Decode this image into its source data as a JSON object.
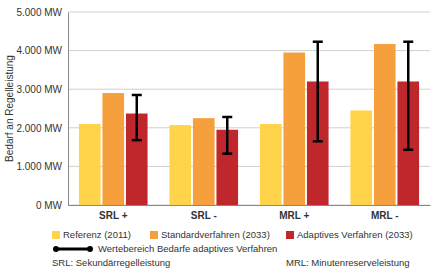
{
  "chart_data": {
    "type": "bar",
    "y_label": "Bedarf an Regelleistung",
    "categories": [
      "SRL +",
      "SRL -",
      "MRL +",
      "MRL -"
    ],
    "series": [
      {
        "name": "Referenz (2011)",
        "color": "#ffd34a",
        "values": [
          2100,
          2070,
          2100,
          2450
        ]
      },
      {
        "name": "Standardverfahren (2033)",
        "color": "#f5a03c",
        "values": [
          2900,
          2250,
          3950,
          4170
        ]
      },
      {
        "name": "Adaptives Verfahren (2033)",
        "color": "#c0272d",
        "values": [
          2370,
          1950,
          3200,
          3200
        ],
        "range_low": [
          1680,
          1330,
          1650,
          1430
        ],
        "range_high": [
          2850,
          2280,
          4230,
          4230
        ],
        "range_label": "Wertebereich Bedarfe adaptives Verfahren"
      }
    ],
    "ylim": [
      0,
      5000
    ],
    "yticks": [
      {
        "value": 0,
        "label": "0 MW"
      },
      {
        "value": 1000,
        "label": "1.000 MW"
      },
      {
        "value": 2000,
        "label": "2.000 MW"
      },
      {
        "value": 3000,
        "label": "3.000 MW"
      },
      {
        "value": 4000,
        "label": "4.000 MW"
      },
      {
        "value": 5000,
        "label": "5.000 MW"
      }
    ],
    "grid": true,
    "notes": [
      "SRL: Sekundärregelleistung",
      "MRL: Minutenreserveleistung"
    ]
  }
}
